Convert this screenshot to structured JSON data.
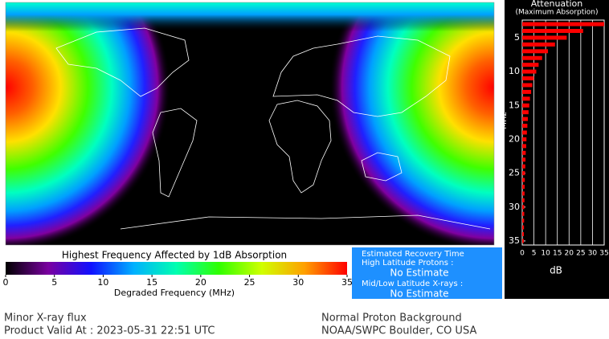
{
  "chart_data": {
    "type": "hbar",
    "title": "Attenuation",
    "subtitle": "(Maximum Absorption)",
    "x_label": "dB",
    "y_label": "MHz",
    "x": [
      3,
      4,
      5,
      6,
      7,
      8,
      9,
      10,
      11,
      12,
      13,
      14,
      15,
      16,
      17,
      18,
      19,
      20,
      21,
      22,
      23,
      24,
      25,
      26,
      27,
      28,
      29,
      30,
      31,
      32,
      33,
      34,
      35
    ],
    "values": [
      35,
      26,
      19,
      14,
      11,
      8.5,
      7,
      6,
      5,
      4.3,
      3.8,
      3.3,
      3,
      2.7,
      2.4,
      2.2,
      2,
      1.8,
      1.7,
      1.5,
      1.4,
      1.3,
      1.2,
      1.1,
      1.05,
      1,
      0.95,
      0.9,
      0.85,
      0.8,
      0.75,
      0.7,
      0.65
    ],
    "color": "#ff0000",
    "xlim": [
      0,
      35
    ],
    "xticks": [
      0,
      5,
      10,
      15,
      20,
      25,
      30,
      35
    ],
    "ylim": [
      2.4,
      35.6
    ],
    "yticks": [
      5,
      10,
      15,
      20,
      25,
      30,
      35
    ],
    "grid": true
  },
  "colorbar": {
    "title": "Highest Frequency Affected by 1dB Absorption",
    "label": "Degraded Frequency (MHz)",
    "lim": [
      0,
      35
    ],
    "ticks": [
      0,
      5,
      10,
      15,
      20,
      25,
      30,
      35
    ],
    "colors": [
      "#000000",
      "#7a00a0",
      "#1010ff",
      "#00b0ff",
      "#00ffb0",
      "#30ff00",
      "#d0ff00",
      "#ffa000",
      "#ff0000"
    ]
  },
  "recovery": {
    "title": "Estimated Recovery Time",
    "high_label": "High Latitude Protons :",
    "high_value": "No Estimate",
    "low_label": "Mid/Low Latitude X-rays :",
    "low_value": "No Estimate"
  },
  "footer": {
    "flux": "Minor X-ray flux",
    "valid": "Product Valid At : 2023-05-31 22:51 UTC",
    "proton": "Normal Proton Background",
    "source": "NOAA/SWPC Boulder, CO USA"
  }
}
